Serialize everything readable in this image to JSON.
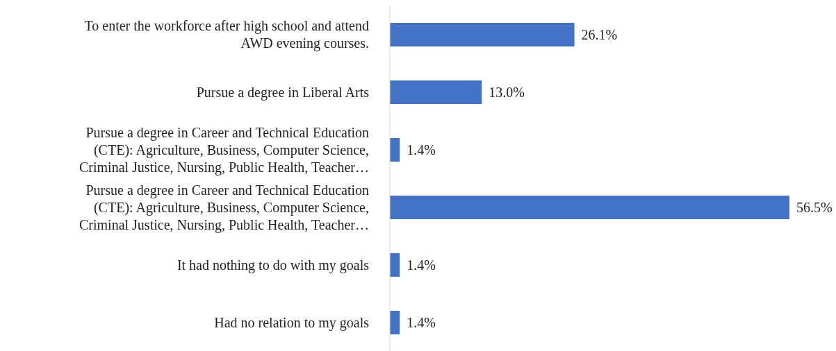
{
  "chart_data": {
    "type": "bar",
    "orientation": "horizontal",
    "categories": [
      "To enter the workforce after high school and attend AWD evening courses.",
      "Pursue a degree in Liberal Arts",
      "Pursue a degree in Career and Technical Education (CTE): Agriculture, Business, Computer Science, Criminal Justice, Nursing, Public Health, Teacher…",
      "Pursue a degree in Career and Technical Education (CTE): Agriculture, Business, Computer Science, Criminal Justice, Nursing, Public Health, Teacher…",
      "It had nothing to do with my goals",
      "Had no relation to my goals"
    ],
    "values": [
      26.1,
      13.0,
      1.4,
      56.5,
      1.4,
      1.4
    ],
    "value_labels": [
      "26.1%",
      "13.0%",
      "1.4%",
      "56.5%",
      "1.4%",
      "1.4%"
    ],
    "color": "#4472c4"
  }
}
